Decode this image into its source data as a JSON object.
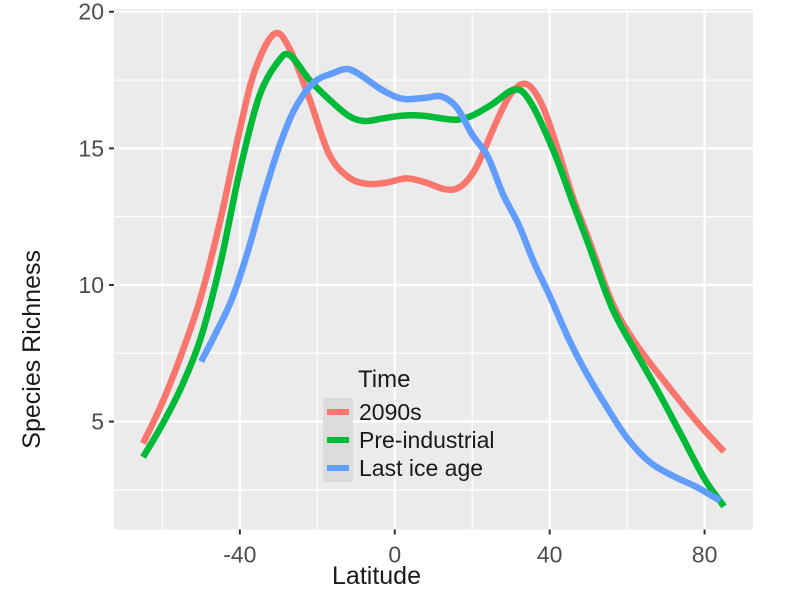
{
  "chart_data": {
    "type": "line",
    "title": "",
    "xlabel": "Latitude",
    "ylabel": "Species Richness",
    "xlim": [
      -72.5,
      92.5
    ],
    "ylim": [
      1.05,
      20.1
    ],
    "x_breaks_major": [
      -40,
      0,
      40,
      80
    ],
    "x_breaks_minor": [
      -60,
      -20,
      20,
      60
    ],
    "y_breaks_major": [
      5,
      10,
      15,
      20
    ],
    "y_breaks_minor": [
      2.5,
      7.5,
      12.5,
      17.5
    ],
    "panel_bg": "#EBEBEB",
    "grid_color": "#FFFFFF",
    "tick_color": "#333333",
    "tick_label_color": "#4d4d4d",
    "legend": {
      "title": "Time",
      "position": "inside-bottom-center",
      "key_bg": "#DCDCDC"
    },
    "series": [
      {
        "name": "2090s",
        "color": "#F8766D",
        "points": [
          [
            -65,
            4.2
          ],
          [
            -60,
            5.7
          ],
          [
            -55,
            7.5
          ],
          [
            -50,
            9.6
          ],
          [
            -45,
            12.4
          ],
          [
            -40,
            15.7
          ],
          [
            -36,
            17.9
          ],
          [
            -31,
            19.2
          ],
          [
            -27,
            18.6
          ],
          [
            -22,
            16.8
          ],
          [
            -17,
            14.8
          ],
          [
            -12,
            13.95
          ],
          [
            -7,
            13.7
          ],
          [
            -2,
            13.75
          ],
          [
            3,
            13.9
          ],
          [
            8,
            13.75
          ],
          [
            13,
            13.5
          ],
          [
            17,
            13.6
          ],
          [
            21,
            14.3
          ],
          [
            26,
            15.9
          ],
          [
            30,
            17.0
          ],
          [
            34,
            17.35
          ],
          [
            38,
            16.6
          ],
          [
            42,
            15.0
          ],
          [
            46,
            13.2
          ],
          [
            50,
            11.7
          ],
          [
            56,
            9.4
          ],
          [
            62,
            7.9
          ],
          [
            70,
            6.4
          ],
          [
            78,
            5.0
          ],
          [
            85,
            3.9
          ]
        ]
      },
      {
        "name": "Pre-industrial",
        "color": "#00BA38",
        "points": [
          [
            -65,
            3.7
          ],
          [
            -60,
            4.9
          ],
          [
            -55,
            6.3
          ],
          [
            -50,
            8.1
          ],
          [
            -45,
            10.8
          ],
          [
            -40,
            14.2
          ],
          [
            -35,
            16.9
          ],
          [
            -30,
            18.2
          ],
          [
            -27,
            18.4
          ],
          [
            -22,
            17.5
          ],
          [
            -17,
            16.8
          ],
          [
            -12,
            16.2
          ],
          [
            -8,
            16.0
          ],
          [
            -3,
            16.1
          ],
          [
            2,
            16.2
          ],
          [
            7,
            16.2
          ],
          [
            12,
            16.1
          ],
          [
            16,
            16.05
          ],
          [
            20,
            16.2
          ],
          [
            25,
            16.6
          ],
          [
            31,
            17.15
          ],
          [
            35,
            16.7
          ],
          [
            41,
            14.9
          ],
          [
            46,
            13.0
          ],
          [
            50,
            11.5
          ],
          [
            56,
            9.2
          ],
          [
            62,
            7.6
          ],
          [
            68,
            6.1
          ],
          [
            74,
            4.5
          ],
          [
            80,
            2.9
          ],
          [
            85,
            1.9
          ]
        ]
      },
      {
        "name": "Last ice age",
        "color": "#619CFF",
        "points": [
          [
            -50,
            7.2
          ],
          [
            -46,
            8.3
          ],
          [
            -42,
            9.5
          ],
          [
            -38,
            11.2
          ],
          [
            -34,
            13.2
          ],
          [
            -30,
            15.0
          ],
          [
            -26,
            16.4
          ],
          [
            -21,
            17.4
          ],
          [
            -16,
            17.75
          ],
          [
            -12,
            17.9
          ],
          [
            -8,
            17.6
          ],
          [
            -4,
            17.2
          ],
          [
            0,
            16.9
          ],
          [
            3,
            16.8
          ],
          [
            8,
            16.85
          ],
          [
            12,
            16.9
          ],
          [
            16,
            16.5
          ],
          [
            20,
            15.5
          ],
          [
            24,
            14.7
          ],
          [
            28,
            13.3
          ],
          [
            32,
            12.2
          ],
          [
            36,
            10.8
          ],
          [
            40,
            9.6
          ],
          [
            45,
            8.0
          ],
          [
            49,
            6.9
          ],
          [
            54,
            5.7
          ],
          [
            60,
            4.4
          ],
          [
            66,
            3.5
          ],
          [
            72,
            3.0
          ],
          [
            78,
            2.6
          ],
          [
            84,
            2.1
          ]
        ]
      }
    ]
  }
}
